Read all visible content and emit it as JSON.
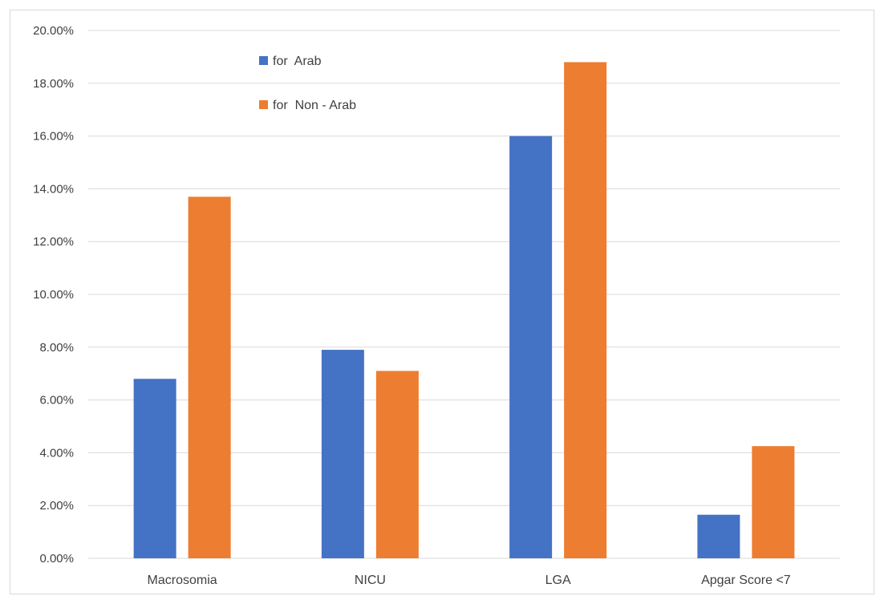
{
  "chart_data": {
    "type": "bar",
    "categories": [
      "Macrosomia",
      "NICU",
      "LGA",
      "Apgar Score <7"
    ],
    "series": [
      {
        "name": "for  Arab",
        "color": "#4472C4",
        "values": [
          0.068,
          0.079,
          0.16,
          0.0165
        ]
      },
      {
        "name": "for  Non - Arab",
        "color": "#ED7D31",
        "values": [
          0.137,
          0.071,
          0.188,
          0.0425
        ]
      }
    ],
    "yticks": [
      "0.00%",
      "2.00%",
      "4.00%",
      "6.00%",
      "8.00%",
      "10.00%",
      "12.00%",
      "14.00%",
      "16.00%",
      "18.00%",
      "20.00%"
    ],
    "ylim": [
      0,
      0.2
    ],
    "grid": true,
    "legend_position": "top-left"
  }
}
